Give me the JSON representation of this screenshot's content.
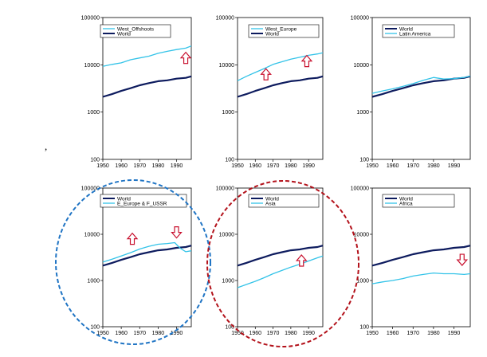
{
  "stray_mark": ",",
  "colors": {
    "world": "#0d1b5e",
    "region": "#33c3e8",
    "arrow": "#c8102e",
    "circle_blue": "#1f74c4",
    "circle_red": "#b3121b"
  },
  "chart_data": [
    {
      "type": "line",
      "scale": "log",
      "ylim": [
        100,
        100000
      ],
      "xlim": [
        1950,
        1998
      ],
      "y_ticks": [
        "100000",
        "10000",
        "1000",
        "100"
      ],
      "x_ticks": [
        "1950",
        "1960",
        "1970",
        "1980",
        "1990"
      ],
      "legend": [
        "West_Offshoots",
        "World"
      ],
      "legend_position": "top-left",
      "series": [
        {
          "name": "West_Offshoots",
          "role": "region",
          "x": [
            1950,
            1955,
            1960,
            1965,
            1970,
            1975,
            1980,
            1985,
            1990,
            1995,
            1998
          ],
          "values": [
            9300,
            10200,
            11000,
            12800,
            14000,
            15200,
            17500,
            19300,
            21000,
            22500,
            25000
          ]
        },
        {
          "name": "World",
          "role": "world",
          "x": [
            1950,
            1955,
            1960,
            1965,
            1970,
            1975,
            1980,
            1985,
            1990,
            1995,
            1998
          ],
          "values": [
            2100,
            2400,
            2800,
            3200,
            3700,
            4100,
            4500,
            4700,
            5100,
            5300,
            5700
          ]
        }
      ],
      "arrows": [
        {
          "x": 1995,
          "y": 14000,
          "dir": "up"
        }
      ]
    },
    {
      "type": "line",
      "scale": "log",
      "ylim": [
        100,
        100000
      ],
      "xlim": [
        1950,
        1998
      ],
      "y_ticks": [
        "100000",
        "10000",
        "1000",
        "100"
      ],
      "x_ticks": [
        "1950",
        "1960",
        "1970",
        "1980",
        "1990"
      ],
      "legend": [
        "West_Europe",
        "World"
      ],
      "legend_position": "top-left",
      "series": [
        {
          "name": "West_Europe",
          "role": "region",
          "x": [
            1950,
            1955,
            1960,
            1965,
            1970,
            1975,
            1980,
            1985,
            1990,
            1995,
            1998
          ],
          "values": [
            4600,
            5700,
            6900,
            8300,
            10200,
            11600,
            13200,
            14400,
            15900,
            17000,
            18000
          ]
        },
        {
          "name": "World",
          "role": "world",
          "x": [
            1950,
            1955,
            1960,
            1965,
            1970,
            1975,
            1980,
            1985,
            1990,
            1995,
            1998
          ],
          "values": [
            2100,
            2400,
            2800,
            3200,
            3700,
            4100,
            4500,
            4700,
            5100,
            5300,
            5700
          ]
        }
      ],
      "arrows": [
        {
          "x": 1966,
          "y": 6300,
          "dir": "up"
        },
        {
          "x": 1989,
          "y": 12000,
          "dir": "up"
        }
      ]
    },
    {
      "type": "line",
      "scale": "log",
      "ylim": [
        100,
        100000
      ],
      "xlim": [
        1950,
        1998
      ],
      "y_ticks": [
        "100000",
        "10000",
        "1000",
        "100"
      ],
      "x_ticks": [
        "1950",
        "1960",
        "1970",
        "1980",
        "1990"
      ],
      "legend": [
        "World",
        "Latin America"
      ],
      "legend_position": "top-right",
      "series": [
        {
          "name": "World",
          "role": "world",
          "x": [
            1950,
            1955,
            1960,
            1965,
            1970,
            1975,
            1980,
            1985,
            1990,
            1995,
            1998
          ],
          "values": [
            2100,
            2400,
            2800,
            3200,
            3700,
            4100,
            4500,
            4700,
            5100,
            5300,
            5700
          ]
        },
        {
          "name": "Latin America",
          "role": "region",
          "x": [
            1950,
            1955,
            1960,
            1965,
            1970,
            1975,
            1980,
            1985,
            1990,
            1995,
            1998
          ],
          "values": [
            2500,
            2800,
            3100,
            3500,
            4000,
            4700,
            5400,
            5000,
            5100,
            5400,
            5800
          ]
        }
      ],
      "arrows": []
    },
    {
      "type": "line",
      "scale": "log",
      "ylim": [
        100,
        100000
      ],
      "xlim": [
        1950,
        1998
      ],
      "y_ticks": [
        "100000",
        "10000",
        "1000",
        "100"
      ],
      "x_ticks": [
        "1950",
        "1960",
        "1970",
        "1980",
        "1990"
      ],
      "legend": [
        "World",
        "E_Europe & F_USSR"
      ],
      "legend_position": "top-left",
      "series": [
        {
          "name": "World",
          "role": "world",
          "x": [
            1950,
            1955,
            1960,
            1965,
            1970,
            1975,
            1980,
            1985,
            1990,
            1995,
            1998
          ],
          "values": [
            2100,
            2400,
            2800,
            3200,
            3700,
            4100,
            4500,
            4700,
            5100,
            5300,
            5700
          ]
        },
        {
          "name": "E_Europe & F_USSR",
          "role": "region",
          "x": [
            1950,
            1955,
            1960,
            1965,
            1970,
            1975,
            1980,
            1985,
            1989,
            1992,
            1995,
            1998
          ],
          "values": [
            2500,
            2900,
            3400,
            4000,
            4800,
            5500,
            6100,
            6300,
            6600,
            5000,
            4200,
            4400
          ]
        }
      ],
      "arrows": [
        {
          "x": 1966,
          "y": 8000,
          "dir": "up"
        },
        {
          "x": 1990,
          "y": 11000,
          "dir": "down"
        }
      ]
    },
    {
      "type": "line",
      "scale": "log",
      "ylim": [
        100,
        100000
      ],
      "xlim": [
        1950,
        1998
      ],
      "y_ticks": [
        "100000",
        "10000",
        "1000",
        "100"
      ],
      "x_ticks": [
        "1950",
        "1960",
        "1970",
        "1980",
        "1990"
      ],
      "legend": [
        "World",
        "Asia"
      ],
      "legend_position": "top-left",
      "series": [
        {
          "name": "World",
          "role": "world",
          "x": [
            1950,
            1955,
            1960,
            1965,
            1970,
            1975,
            1980,
            1985,
            1990,
            1995,
            1998
          ],
          "values": [
            2100,
            2400,
            2800,
            3200,
            3700,
            4100,
            4500,
            4700,
            5100,
            5300,
            5700
          ]
        },
        {
          "name": "Asia",
          "role": "region",
          "x": [
            1950,
            1955,
            1960,
            1965,
            1970,
            1975,
            1980,
            1985,
            1990,
            1995,
            1998
          ],
          "values": [
            700,
            820,
            960,
            1150,
            1400,
            1650,
            1950,
            2250,
            2650,
            3100,
            3400
          ]
        }
      ],
      "arrows": [
        {
          "x": 1986,
          "y": 2700,
          "dir": "up"
        }
      ]
    },
    {
      "type": "line",
      "scale": "log",
      "ylim": [
        100,
        100000
      ],
      "xlim": [
        1950,
        1998
      ],
      "y_ticks": [
        "100000",
        "10000",
        "1000",
        "100"
      ],
      "x_ticks": [
        "1950",
        "1960",
        "1970",
        "1980",
        "1990"
      ],
      "legend": [
        "World",
        "Africa"
      ],
      "legend_position": "top-right",
      "series": [
        {
          "name": "World",
          "role": "world",
          "x": [
            1950,
            1955,
            1960,
            1965,
            1970,
            1975,
            1980,
            1985,
            1990,
            1995,
            1998
          ],
          "values": [
            2100,
            2400,
            2800,
            3200,
            3700,
            4100,
            4500,
            4700,
            5100,
            5300,
            5700
          ]
        },
        {
          "name": "Africa",
          "role": "region",
          "x": [
            1950,
            1955,
            1960,
            1965,
            1970,
            1975,
            1980,
            1985,
            1990,
            1995,
            1998
          ],
          "values": [
            850,
            930,
            1000,
            1100,
            1250,
            1350,
            1450,
            1400,
            1400,
            1350,
            1400
          ]
        }
      ],
      "arrows": [
        {
          "x": 1994,
          "y": 2800,
          "dir": "down"
        }
      ]
    }
  ]
}
